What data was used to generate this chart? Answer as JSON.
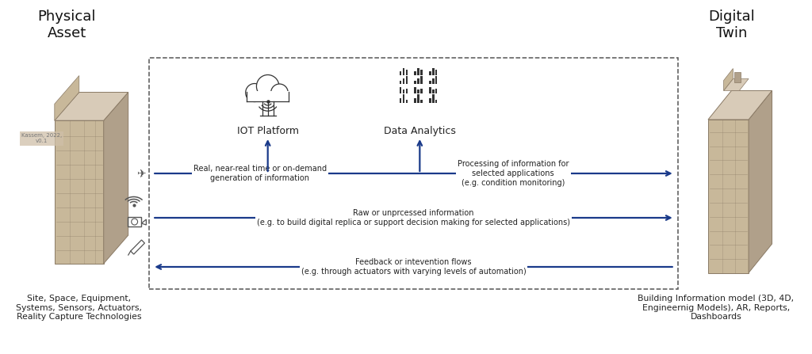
{
  "title_left": "Physical\nAsset",
  "title_right": "Digital\nTwin",
  "subtitle_left": "Site, Space, Equipment,\nSystems, Sensors, Actuators,\nReality Capture Technologies",
  "subtitle_right": "Building Information model (3D, 4D,\nEngineernig Models), AR, Reports,\nDashboards",
  "watermark": "Kassem, 2022,\nv0.1",
  "iot_label": "IOT Platform",
  "analytics_label": "Data Analytics",
  "arrow_color": "#1a3a8a",
  "dashed_box_color": "#555555",
  "bg_color": "#ffffff",
  "building_front": "#c8b89a",
  "building_side": "#b0a08a",
  "building_top": "#d8cbb8",
  "building_edge": "#8a7a65",
  "arrow1_text_left": "Real, near-real time or on-demand\ngeneration of information",
  "arrow1_text_right": "Processing of information for\nselected applications\n(e.g. condition monitoring)",
  "arrow2_text": "Raw or unprcessed information\n(e.g. to build digital replica or support decision making for selected applications)",
  "arrow3_text": "Feedback or intevention flows\n(e.g. through actuators with varying levels of automation)"
}
